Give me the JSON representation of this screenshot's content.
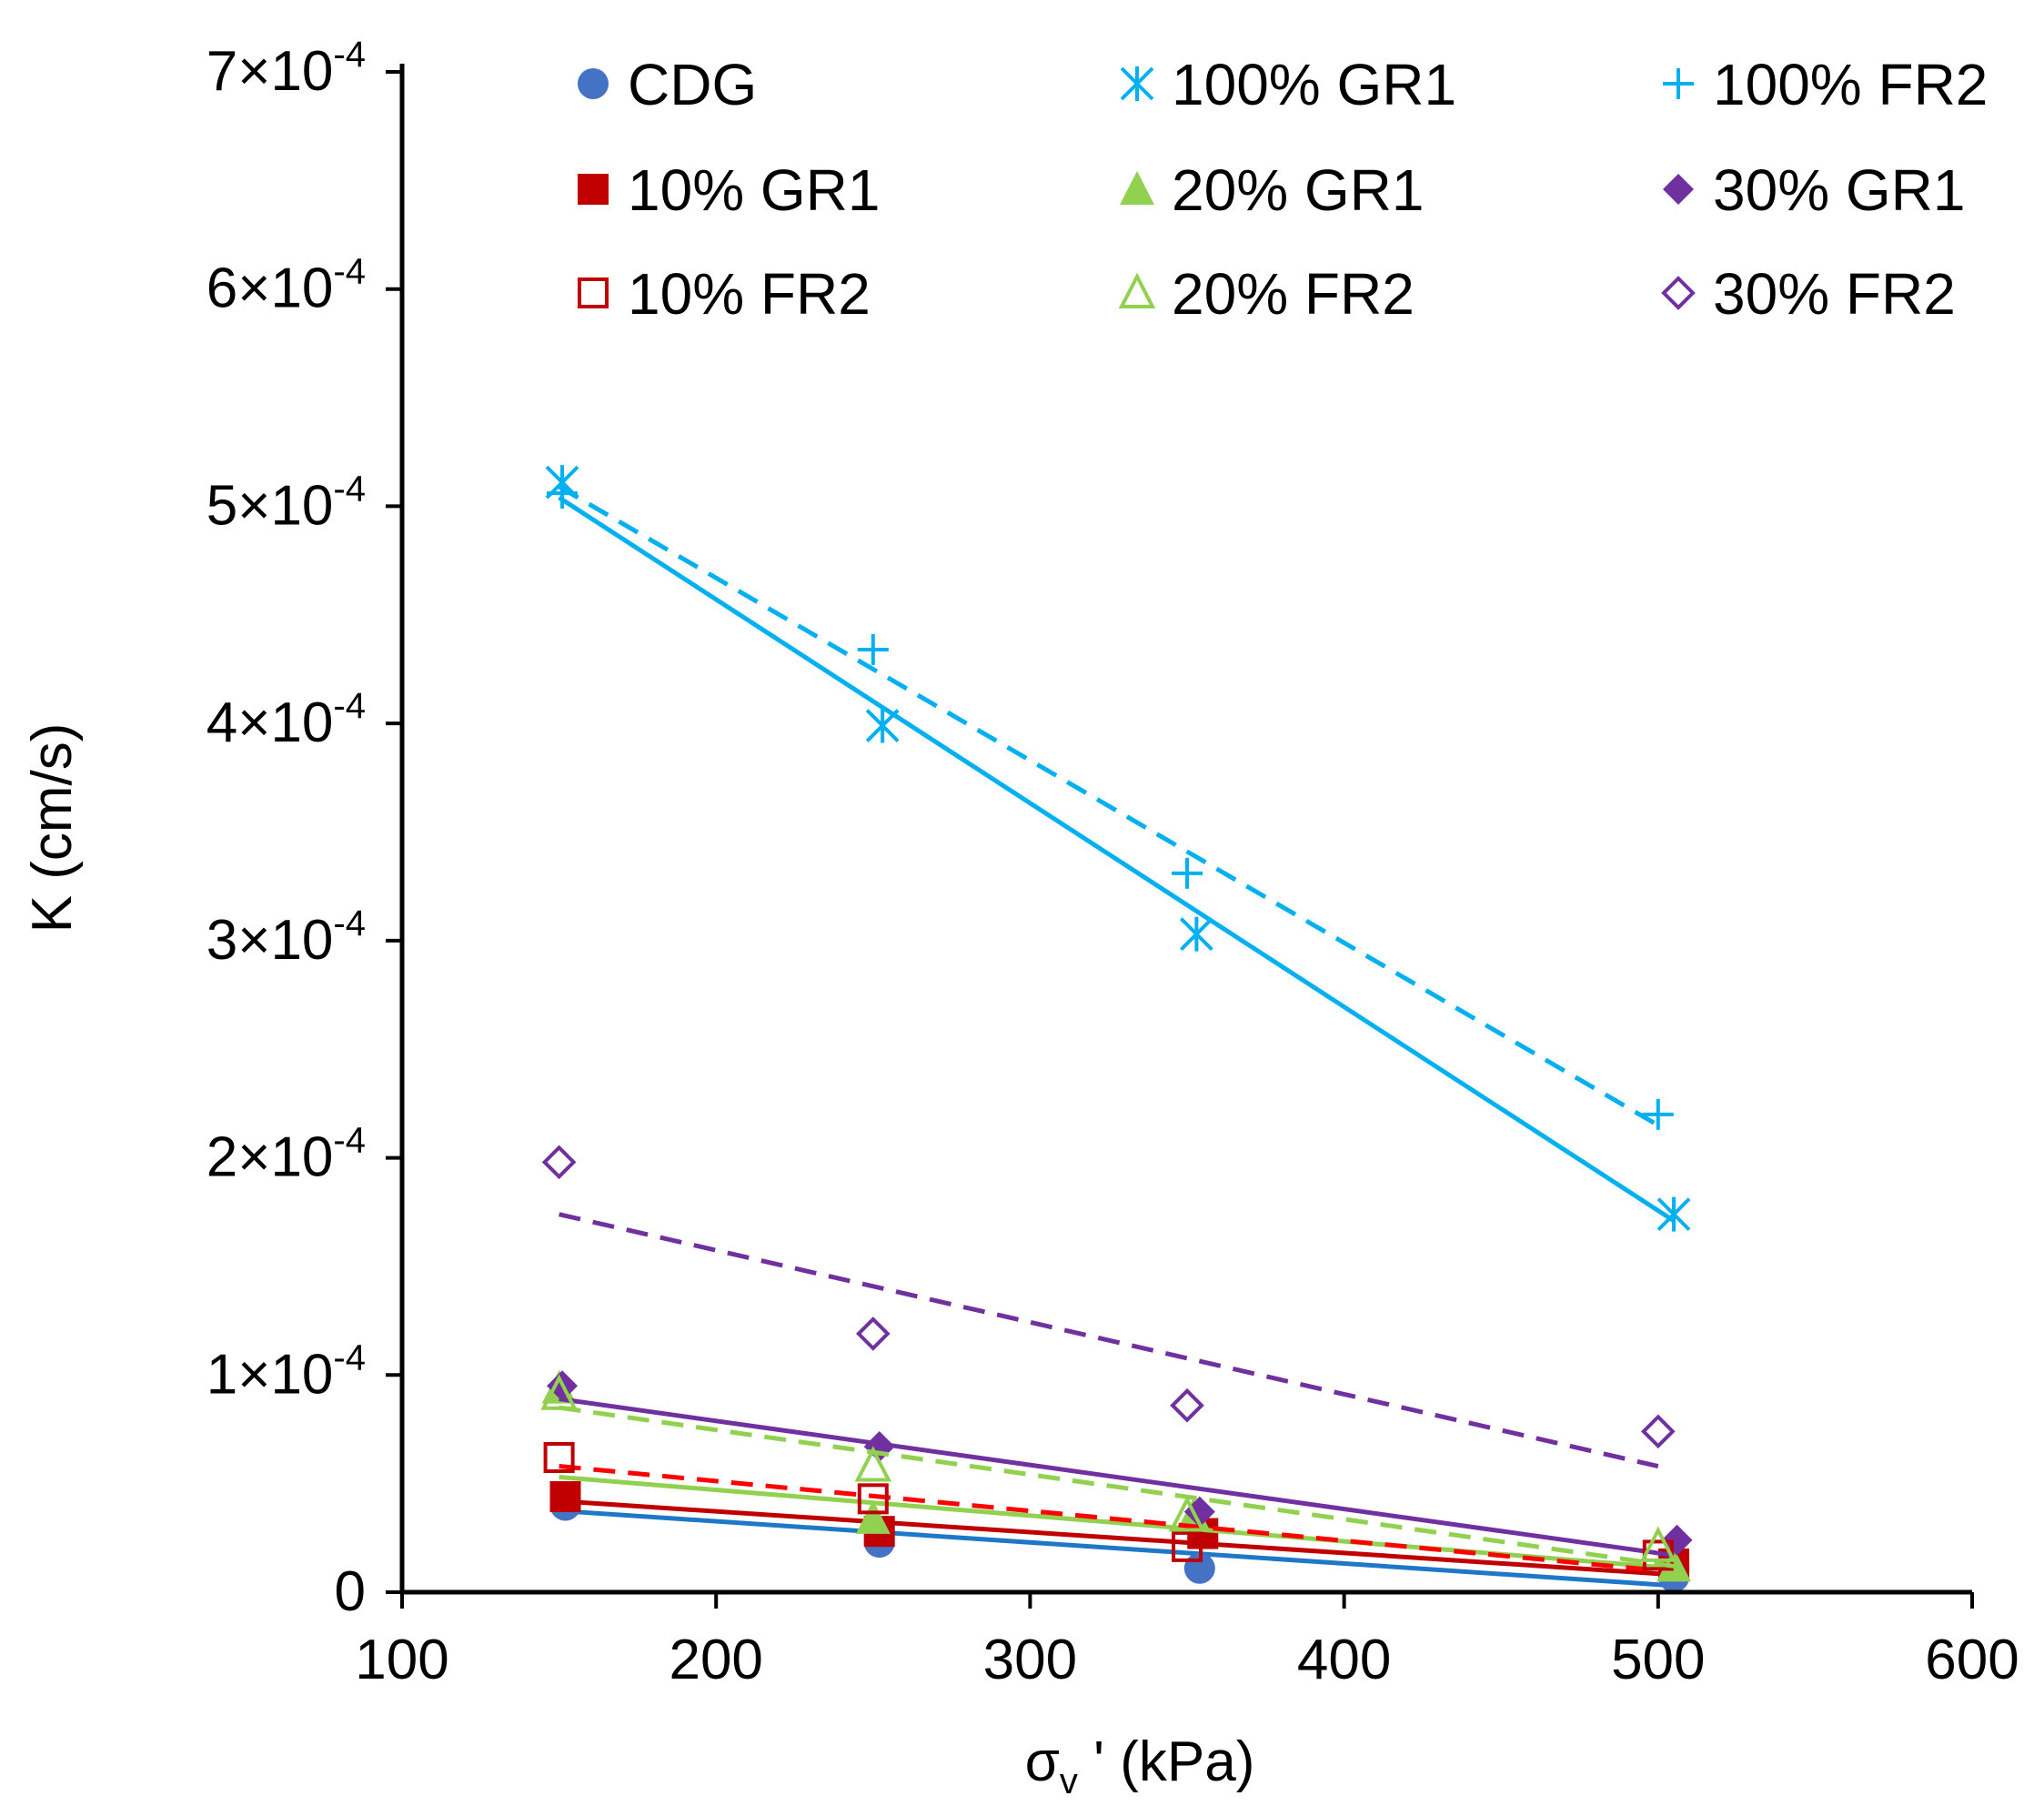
{
  "chart_data": {
    "type": "scatter",
    "xlabel": "σv' (kPa)",
    "ylabel": "K (cm/s)",
    "xlim": [
      100,
      600
    ],
    "ylim": [
      0,
      0.0007
    ],
    "x_ticks": [
      100,
      200,
      300,
      400,
      500,
      600
    ],
    "x_tick_labels": [
      "100",
      "200",
      "300",
      "400",
      "500",
      "600"
    ],
    "y_ticks": [
      0,
      0.0001,
      0.0002,
      0.0003,
      0.0004,
      0.0005,
      0.0006,
      0.0007
    ],
    "y_tick_labels": [
      {
        "base": "0",
        "exp": ""
      },
      {
        "base": "1×10",
        "exp": "-4"
      },
      {
        "base": "2×10",
        "exp": "-4"
      },
      {
        "base": "3×10",
        "exp": "-4"
      },
      {
        "base": "4×10",
        "exp": "-4"
      },
      {
        "base": "5×10",
        "exp": "-4"
      },
      {
        "base": "6×10",
        "exp": "-4"
      },
      {
        "base": "7×10",
        "exp": "-4"
      }
    ],
    "grid": false,
    "legend_position": "top",
    "series": [
      {
        "name": "CDG",
        "marker": "circle",
        "color": "#4472C4",
        "trend_color": "#1F77C8",
        "trend_style": "solid",
        "x": [
          152,
          252,
          354,
          505
        ],
        "y": [
          4e-05,
          2.3e-05,
          1.1e-05,
          7e-06
        ],
        "trend": [
          [
            150,
            3.75e-05
          ],
          [
            505,
            3e-06
          ]
        ]
      },
      {
        "name": "100% GR1",
        "marker": "asterisk",
        "color": "#00B0F0",
        "trend_color": "#00B0F0",
        "trend_style": "solid",
        "x": [
          151,
          253,
          353,
          505
        ],
        "y": [
          0.000511,
          0.000399,
          0.000303,
          0.000174
        ],
        "trend": [
          [
            150,
            0.000504
          ],
          [
            505,
            0.000171
          ]
        ]
      },
      {
        "name": "100% FR2",
        "marker": "plus",
        "color": "#00B0F0",
        "trend_color": "#00B0F0",
        "trend_style": "dashed",
        "x": [
          151,
          250,
          350,
          500
        ],
        "y": [
          0.000506,
          0.000434,
          0.000331,
          0.00022
        ],
        "trend": [
          [
            150,
            0.000509
          ],
          [
            500,
            0.000215
          ]
        ]
      },
      {
        "name": "10% GR1",
        "marker": "square",
        "color": "#C00000",
        "trend_color": "#C00000",
        "trend_style": "solid",
        "x": [
          152,
          252,
          355,
          505
        ],
        "y": [
          4.4e-05,
          2.8e-05,
          2.7e-05,
          1.3e-05
        ],
        "trend": [
          [
            150,
            4.2e-05
          ],
          [
            505,
            8e-06
          ]
        ]
      },
      {
        "name": "20% GR1",
        "marker": "triangle",
        "color": "#92D050",
        "trend_color": "#92D050",
        "trend_style": "solid",
        "x": [
          150,
          250,
          352,
          505
        ],
        "y": [
          9.4e-05,
          3.4e-05,
          3.5e-05,
          1.2e-05
        ],
        "trend": [
          [
            150,
            5.3e-05
          ],
          [
            505,
            1.1e-05
          ]
        ]
      },
      {
        "name": "30% GR1",
        "marker": "diamond",
        "color": "#7030A0",
        "trend_color": "#7030A0",
        "trend_style": "solid",
        "x": [
          151,
          252,
          354,
          506
        ],
        "y": [
          9.5e-05,
          6.7e-05,
          3.7e-05,
          2.4e-05
        ],
        "trend": [
          [
            150,
            8.9e-05
          ],
          [
            505,
            1.7e-05
          ]
        ]
      },
      {
        "name": "10% FR2",
        "marker": "square-open",
        "color": "#C00000",
        "trend_color": "#FF0000",
        "trend_style": "dashed",
        "x": [
          150,
          250,
          350,
          500
        ],
        "y": [
          6.2e-05,
          4.3e-05,
          2.1e-05,
          1.7e-05
        ],
        "trend": [
          [
            150,
            5.8e-05
          ],
          [
            500,
            1e-05
          ]
        ]
      },
      {
        "name": "20% FR2",
        "marker": "triangle-open",
        "color": "#92D050",
        "trend_color": "#92D050",
        "trend_style": "dashed",
        "x": [
          150,
          250,
          350,
          500
        ],
        "y": [
          9.1e-05,
          5.8e-05,
          3.5e-05,
          2.1e-05
        ],
        "trend": [
          [
            150,
            8.5e-05
          ],
          [
            505,
            1.2e-05
          ]
        ]
      },
      {
        "name": "30% FR2",
        "marker": "diamond-open",
        "color": "#7030A0",
        "trend_color": "#7030A0",
        "trend_style": "dashed",
        "x": [
          150,
          250,
          350,
          500
        ],
        "y": [
          0.000198,
          0.000119,
          8.6e-05,
          7.4e-05
        ],
        "trend": [
          [
            150,
            0.000174
          ],
          [
            500,
            5.8e-05
          ]
        ]
      }
    ]
  }
}
